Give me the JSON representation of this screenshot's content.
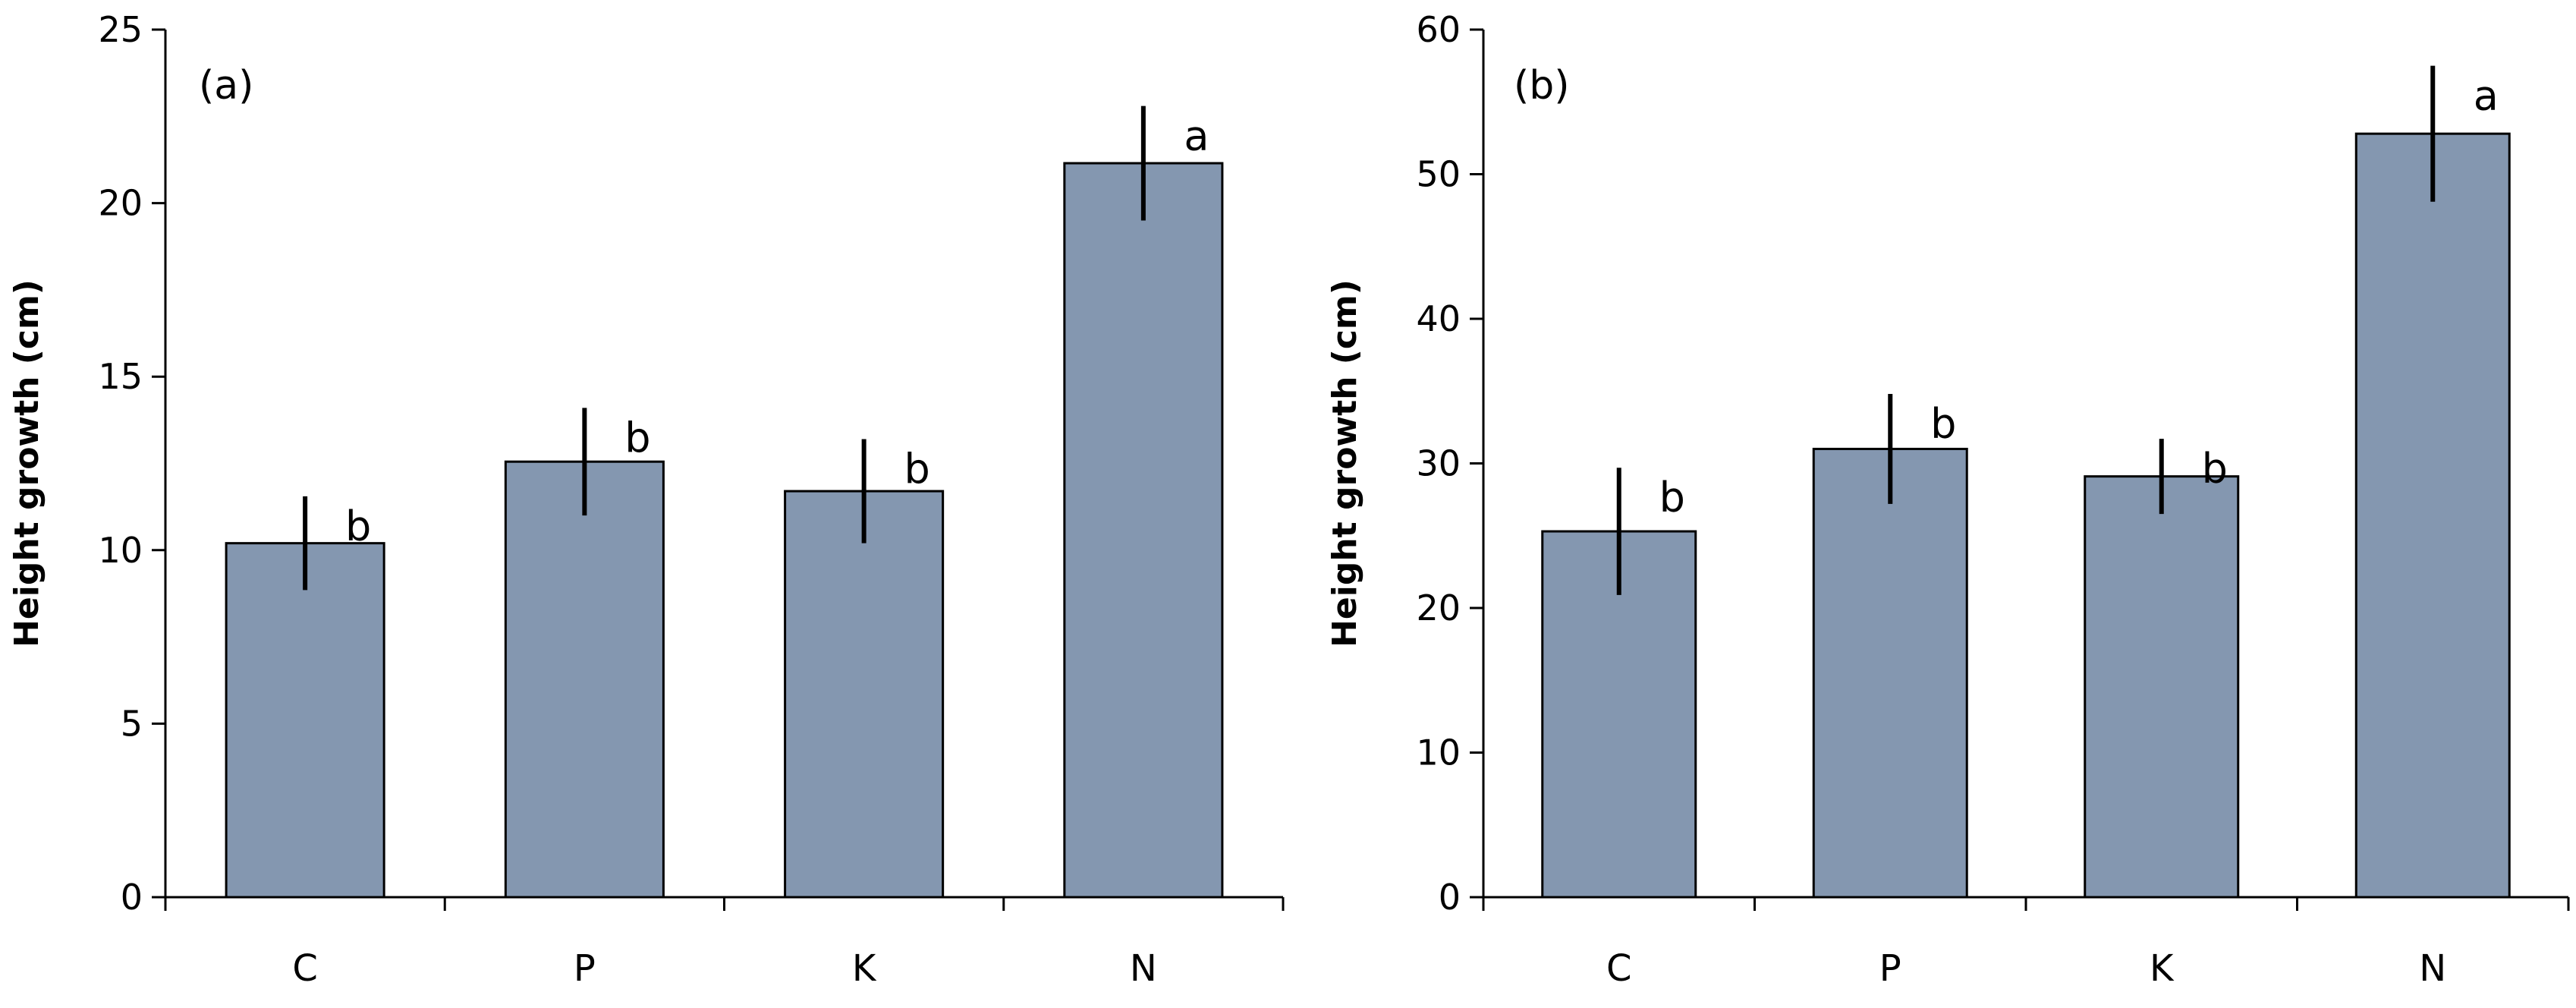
{
  "chart_data": [
    {
      "type": "bar",
      "panel_label": "(a)",
      "categories": [
        "C",
        "P",
        "K",
        "N"
      ],
      "values": [
        10.2,
        12.55,
        11.7,
        21.15
      ],
      "errors": [
        1.35,
        1.55,
        1.5,
        1.65
      ],
      "significance": [
        "b",
        "b",
        "b",
        "a"
      ],
      "ylabel": "Height growth (cm)",
      "xlabel": "",
      "ylim": [
        0,
        25
      ],
      "yticks": [
        0,
        5,
        10,
        15,
        20,
        25
      ],
      "grid": false,
      "bar_color": "#8497b0"
    },
    {
      "type": "bar",
      "panel_label": "(b)",
      "categories": [
        "C",
        "P",
        "K",
        "N"
      ],
      "values": [
        25.3,
        31.0,
        29.1,
        52.8
      ],
      "errors": [
        4.4,
        3.8,
        2.6,
        4.7
      ],
      "significance": [
        "b",
        "b",
        "b",
        "a"
      ],
      "ylabel": "Height growth (cm)",
      "xlabel": "",
      "ylim": [
        0,
        60
      ],
      "yticks": [
        0,
        10,
        20,
        30,
        40,
        50,
        60
      ],
      "grid": false,
      "bar_color": "#8497b0"
    }
  ]
}
